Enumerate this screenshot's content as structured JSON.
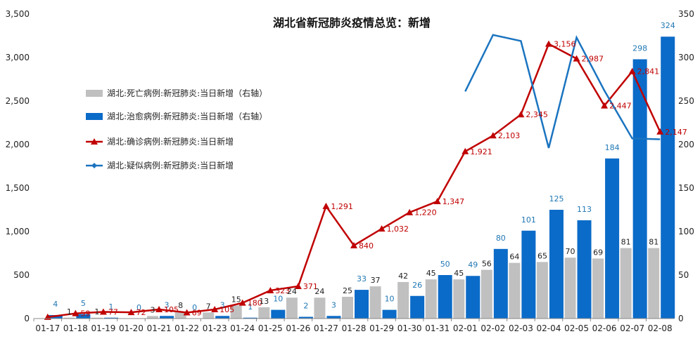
{
  "chart_data": {
    "type": "bar",
    "title": "湖北省新冠肺炎疫情总览：新增",
    "categories": [
      "01-17",
      "01-18",
      "01-19",
      "01-20",
      "01-21",
      "01-22",
      "01-23",
      "01-24",
      "01-25",
      "01-26",
      "01-27",
      "01-28",
      "01-29",
      "01-30",
      "01-31",
      "02-01",
      "02-02",
      "02-03",
      "02-04",
      "02-05",
      "02-06",
      "02-07",
      "02-08"
    ],
    "left_axis": {
      "ylim": [
        0,
        3500
      ],
      "ticks": [
        "0",
        "500",
        "1,000",
        "1,500",
        "2,000",
        "2,500",
        "3,000",
        "3,500"
      ]
    },
    "right_axis": {
      "ylim": [
        0,
        350
      ],
      "ticks": [
        "0",
        "50",
        "100",
        "150",
        "200",
        "250",
        "300",
        "350"
      ]
    },
    "series": [
      {
        "name": "湖北:死亡病例:新冠肺炎:当日新增（右轴）",
        "type": "bar",
        "axis": "right",
        "color": "#c0c0c0",
        "values": [
          0,
          1,
          1,
          0,
          3,
          8,
          7,
          15,
          13,
          24,
          24,
          25,
          37,
          42,
          45,
          45,
          56,
          64,
          65,
          70,
          69,
          81,
          81
        ],
        "labels": [
          "",
          "1",
          "1",
          "",
          "3",
          "8",
          "7",
          "15",
          "13",
          "24",
          "24",
          "25",
          "37",
          "42",
          "45",
          "45",
          "56",
          "64",
          "65",
          "70",
          "69",
          "81",
          "81"
        ]
      },
      {
        "name": "湖北:治愈病例:新冠肺炎:当日新增（右轴）",
        "type": "bar",
        "axis": "right",
        "color": "#0b6bc8",
        "values": [
          4,
          5,
          1,
          0,
          3,
          0,
          3,
          1,
          10,
          2,
          3,
          33,
          10,
          26,
          50,
          49,
          80,
          101,
          125,
          113,
          184,
          298,
          324
        ],
        "labels": [
          "4",
          "5",
          "1",
          "0",
          "3",
          "0",
          "3",
          "1",
          "10",
          "2",
          "3",
          "33",
          "10",
          "26",
          "50",
          "49",
          "80",
          "101",
          "125",
          "113",
          "184",
          "298",
          "324"
        ]
      },
      {
        "name": "湖北:确诊病例:新冠肺炎:当日新增",
        "type": "line",
        "axis": "left",
        "color": "#c00000",
        "values": [
          17,
          59,
          77,
          72,
          105,
          69,
          105,
          180,
          323,
          371,
          1291,
          840,
          1032,
          1220,
          1347,
          1921,
          2103,
          2345,
          3156,
          2987,
          2447,
          2841,
          2147
        ],
        "labels": [
          "",
          "59",
          "77",
          "72",
          "105",
          "69",
          "105",
          "180",
          "323",
          "371",
          "1,291",
          "840",
          "1,032",
          "1,220",
          "1,347",
          "1,921",
          "2,103",
          "2,345",
          "3,156",
          "2,987",
          "2,447",
          "2,841",
          "2,147"
        ]
      },
      {
        "name": "湖北:疑似病例:新冠肺炎:当日新增",
        "type": "line",
        "axis": "right",
        "color": "#1a74c0",
        "values": [
          null,
          null,
          null,
          null,
          null,
          null,
          null,
          null,
          null,
          null,
          null,
          null,
          null,
          null,
          null,
          261,
          326,
          319,
          196,
          323,
          262,
          207,
          206
        ],
        "labels": []
      }
    ],
    "legend_position": "top-left",
    "grid": false
  }
}
